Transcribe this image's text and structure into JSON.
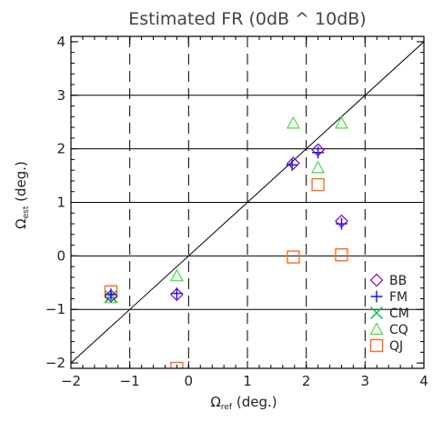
{
  "chart_data": {
    "type": "scatter",
    "title": "Estimated FR (0dB ^ 10dB)",
    "xlabel": {
      "main": "Ω",
      "sub": "ref",
      "unit": "(deg.)"
    },
    "ylabel": {
      "main": "Ω",
      "sub": "est",
      "unit": "(deg.)"
    },
    "xlim": [
      -2,
      4
    ],
    "ylim": [
      -2.1,
      4.1
    ],
    "xticks": [
      -2,
      -1,
      0,
      1,
      2,
      3,
      4
    ],
    "yticks": [
      -2,
      -1,
      0,
      1,
      2,
      3,
      4
    ],
    "grid": {
      "horizontal_solid": [
        -1,
        0,
        1,
        2,
        3
      ],
      "vertical_dashed": [
        -1,
        0,
        1,
        2,
        3
      ]
    },
    "reference_line": "y = x",
    "legend_position": "bottom-right",
    "series": [
      {
        "name": "BB",
        "marker": "diamond",
        "color": "#7f00bf",
        "points": [
          [
            -1.32,
            -0.75
          ],
          [
            -0.2,
            -0.72
          ],
          [
            1.78,
            1.73
          ],
          [
            2.2,
            1.98
          ],
          [
            2.6,
            0.65
          ]
        ]
      },
      {
        "name": "FM",
        "marker": "plus",
        "color": "#1010ff",
        "points": [
          [
            -1.32,
            -0.72
          ],
          [
            -0.2,
            -0.7
          ],
          [
            1.76,
            1.7
          ],
          [
            2.2,
            1.93
          ],
          [
            2.6,
            0.6
          ]
        ]
      },
      {
        "name": "CM",
        "marker": "x",
        "color": "#00c040",
        "points": [
          [
            -1.32,
            -0.76
          ]
        ]
      },
      {
        "name": "CQ",
        "marker": "triangle",
        "color": "#40e040",
        "points": [
          [
            -1.32,
            -0.78
          ],
          [
            -0.2,
            -0.37
          ],
          [
            1.78,
            2.48
          ],
          [
            2.2,
            1.65
          ],
          [
            2.6,
            2.48
          ]
        ]
      },
      {
        "name": "QJ",
        "marker": "square",
        "color": "#ff6a20",
        "points": [
          [
            -1.32,
            -0.67
          ],
          [
            -0.2,
            -2.1
          ],
          [
            1.78,
            -0.02
          ],
          [
            2.2,
            1.33
          ],
          [
            2.6,
            0.02
          ]
        ]
      }
    ]
  }
}
